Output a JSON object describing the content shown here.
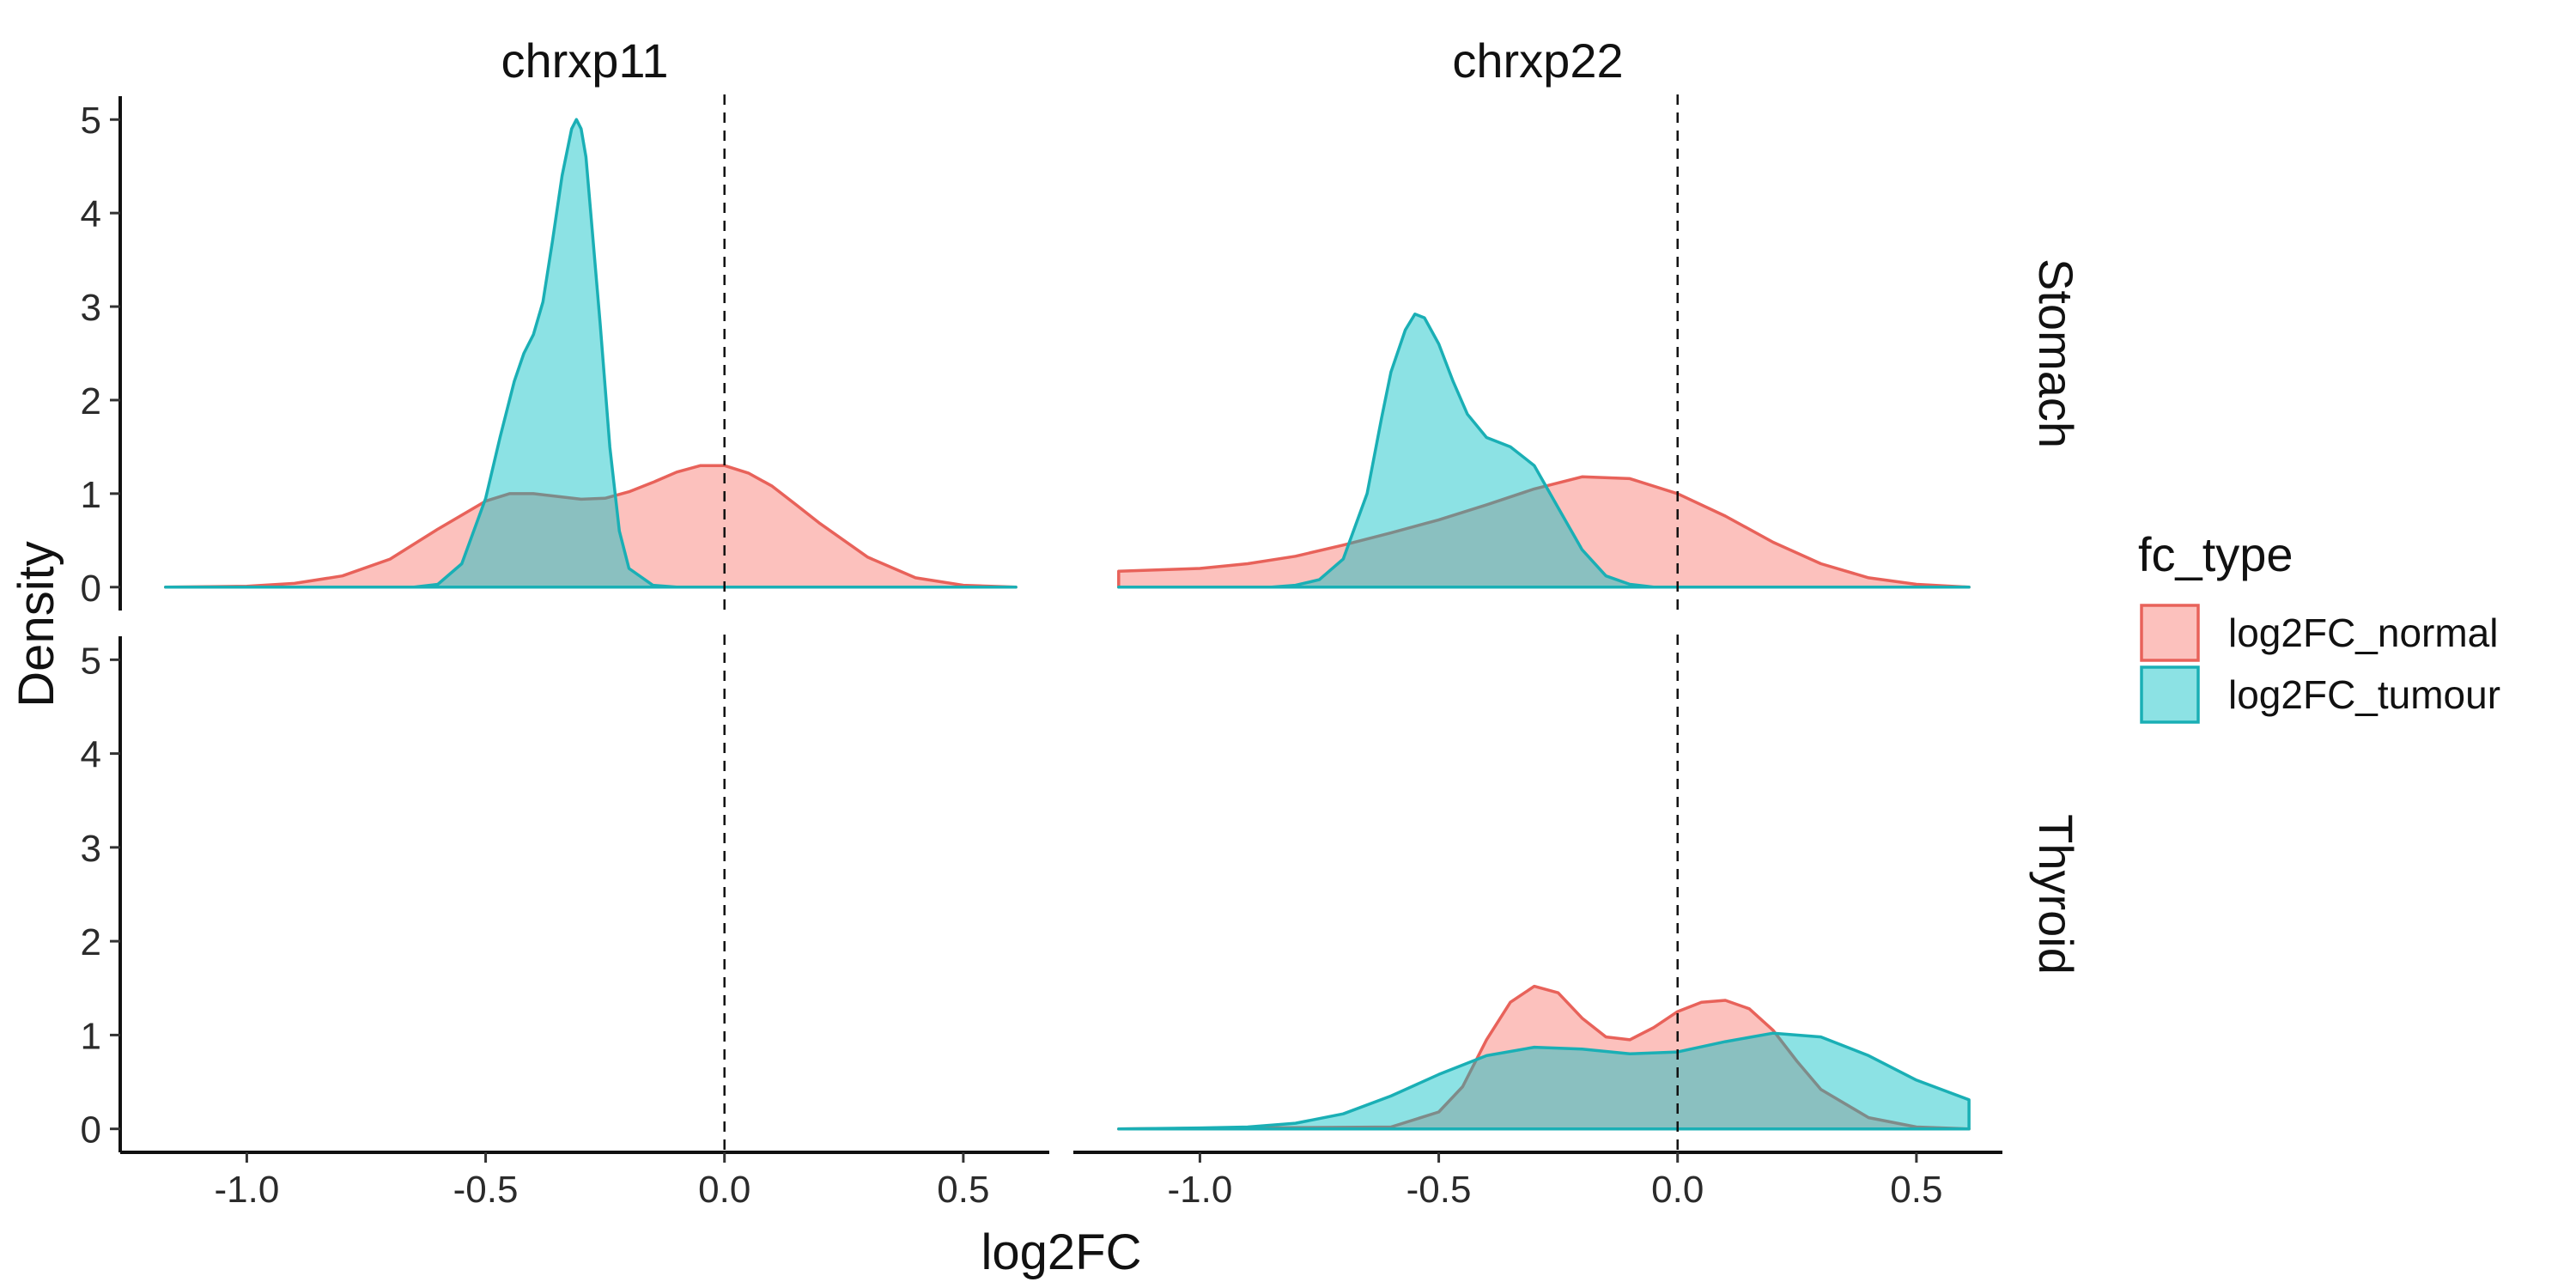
{
  "chart_data": {
    "type": "area",
    "xlabel": "log2FC",
    "ylabel": "Density",
    "xlim": [
      -1.265,
      0.68
    ],
    "ylim": [
      -0.25,
      5.25
    ],
    "x_ticks": [
      -1.0,
      -0.5,
      0.0,
      0.5
    ],
    "x_tick_labels": [
      "-1.0",
      "-0.5",
      "0.0",
      "0.5"
    ],
    "y_ticks": [
      0,
      1,
      2,
      3,
      4,
      5
    ],
    "y_tick_labels": [
      "0",
      "1",
      "2",
      "3",
      "4",
      "5"
    ],
    "reference_line_x": 0.0,
    "grid": false,
    "facet_columns": [
      "chrxp11",
      "chrxp22"
    ],
    "facet_rows": [
      "Stomach",
      "Thyroid"
    ],
    "legend": {
      "title": "fc_type",
      "placement": "right",
      "entries": [
        {
          "name": "log2FC_normal",
          "fill": "#F8766D",
          "line": "#E8625A"
        },
        {
          "name": "log2FC_tumour",
          "fill": "#00BFC4",
          "line": "#1AAFB5"
        }
      ]
    },
    "panels": [
      {
        "column": "chrxp11",
        "row": "Stomach",
        "series": [
          {
            "name": "log2FC_normal",
            "x": [
              -1.17,
              -1.0,
              -0.9,
              -0.8,
              -0.7,
              -0.6,
              -0.5,
              -0.45,
              -0.4,
              -0.35,
              -0.3,
              -0.25,
              -0.2,
              -0.15,
              -0.1,
              -0.05,
              0.0,
              0.05,
              0.1,
              0.15,
              0.2,
              0.3,
              0.4,
              0.5,
              0.61
            ],
            "y": [
              0.0,
              0.01,
              0.04,
              0.12,
              0.3,
              0.62,
              0.92,
              1.0,
              1.0,
              0.97,
              0.94,
              0.95,
              1.02,
              1.12,
              1.23,
              1.3,
              1.3,
              1.22,
              1.08,
              0.88,
              0.68,
              0.32,
              0.1,
              0.02,
              0.0
            ]
          },
          {
            "name": "log2FC_tumour",
            "x": [
              -1.17,
              -0.65,
              -0.6,
              -0.55,
              -0.5,
              -0.47,
              -0.44,
              -0.42,
              -0.4,
              -0.38,
              -0.36,
              -0.34,
              -0.32,
              -0.31,
              -0.3,
              -0.29,
              -0.28,
              -0.26,
              -0.24,
              -0.22,
              -0.2,
              -0.15,
              -0.1,
              0.61
            ],
            "y": [
              0.0,
              0.0,
              0.03,
              0.25,
              0.95,
              1.6,
              2.2,
              2.5,
              2.7,
              3.05,
              3.7,
              4.4,
              4.9,
              5.0,
              4.9,
              4.6,
              4.0,
              2.8,
              1.5,
              0.6,
              0.2,
              0.02,
              0.0,
              0.0
            ]
          }
        ]
      },
      {
        "column": "chrxp22",
        "row": "Stomach",
        "series": [
          {
            "name": "log2FC_normal",
            "x": [
              -1.17,
              -1.0,
              -0.9,
              -0.8,
              -0.7,
              -0.6,
              -0.5,
              -0.4,
              -0.3,
              -0.2,
              -0.1,
              0.0,
              0.1,
              0.2,
              0.3,
              0.4,
              0.5,
              0.61
            ],
            "y": [
              0.17,
              0.2,
              0.25,
              0.33,
              0.45,
              0.58,
              0.72,
              0.88,
              1.05,
              1.18,
              1.16,
              1.0,
              0.76,
              0.48,
              0.25,
              0.1,
              0.03,
              0.0
            ]
          },
          {
            "name": "log2FC_tumour",
            "x": [
              -1.17,
              -0.85,
              -0.8,
              -0.75,
              -0.7,
              -0.65,
              -0.62,
              -0.6,
              -0.57,
              -0.55,
              -0.53,
              -0.5,
              -0.47,
              -0.44,
              -0.4,
              -0.35,
              -0.3,
              -0.25,
              -0.2,
              -0.15,
              -0.1,
              -0.05,
              0.61
            ],
            "y": [
              0.0,
              0.0,
              0.02,
              0.08,
              0.3,
              1.0,
              1.8,
              2.3,
              2.75,
              2.92,
              2.88,
              2.6,
              2.2,
              1.85,
              1.6,
              1.5,
              1.3,
              0.85,
              0.4,
              0.12,
              0.03,
              0.0,
              0.0
            ]
          }
        ]
      },
      {
        "column": "chrxp11",
        "row": "Thyroid",
        "series": []
      },
      {
        "column": "chrxp22",
        "row": "Thyroid",
        "series": [
          {
            "name": "log2FC_normal",
            "x": [
              -1.17,
              -0.6,
              -0.5,
              -0.45,
              -0.4,
              -0.35,
              -0.3,
              -0.25,
              -0.2,
              -0.15,
              -0.1,
              -0.05,
              0.0,
              0.05,
              0.1,
              0.15,
              0.2,
              0.25,
              0.3,
              0.4,
              0.5,
              0.61
            ],
            "y": [
              0.0,
              0.02,
              0.18,
              0.45,
              0.95,
              1.35,
              1.52,
              1.45,
              1.18,
              0.98,
              0.95,
              1.08,
              1.25,
              1.35,
              1.37,
              1.28,
              1.05,
              0.72,
              0.42,
              0.12,
              0.02,
              0.0
            ]
          },
          {
            "name": "log2FC_tumour",
            "x": [
              -1.17,
              -1.0,
              -0.9,
              -0.8,
              -0.7,
              -0.6,
              -0.5,
              -0.4,
              -0.3,
              -0.2,
              -0.1,
              0.0,
              0.1,
              0.2,
              0.3,
              0.4,
              0.5,
              0.61
            ],
            "y": [
              0.0,
              0.01,
              0.02,
              0.06,
              0.16,
              0.35,
              0.58,
              0.78,
              0.87,
              0.85,
              0.8,
              0.82,
              0.93,
              1.02,
              0.98,
              0.78,
              0.52,
              0.31
            ]
          }
        ]
      }
    ]
  }
}
